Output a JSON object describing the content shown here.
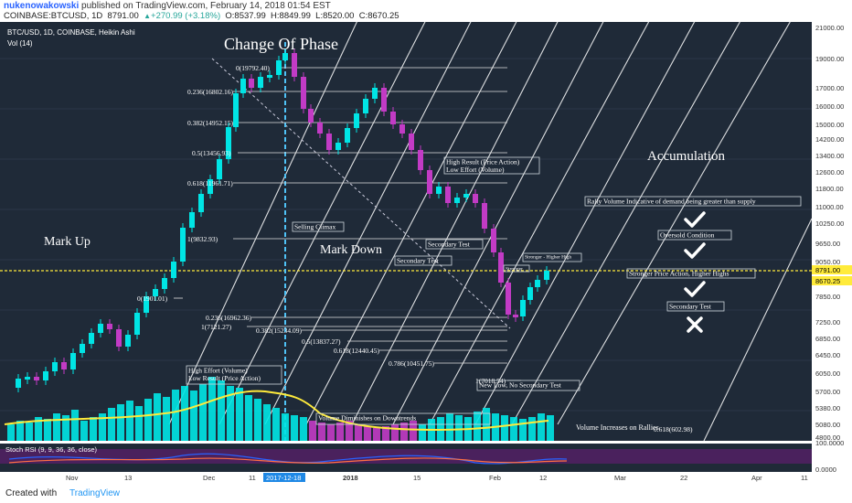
{
  "header": {
    "author": "nukenowakowski",
    "published": "published on TradingView.com, February 14, 2018 01:54 EST",
    "symbol": "COINBASE:BTCUSD, 1D",
    "last": "8791.00",
    "change": "+270.99 (+3.18%)",
    "open": "O:8537.99",
    "high": "H:8849.99",
    "low": "L:8520.00",
    "close": "C:8670.25"
  },
  "footer": {
    "created_with": "Created with",
    "brand": "TradingView"
  },
  "chart_data": {
    "type": "candlestick",
    "title": "BTC/USD, 1D, COINBASE, Heikin Ashi",
    "indicator": "Vol (14)",
    "rsi_label": "Stoch RSI (9, 9, 36, 36, close)",
    "y_ticks": [
      "21000.00",
      "19000.00",
      "17000.00",
      "16000.00",
      "15000.00",
      "14200.00",
      "13400.00",
      "12600.00",
      "11800.00",
      "11000.00",
      "10250.00",
      "9650.00",
      "9050.00",
      "7850.00",
      "7250.00",
      "6850.00",
      "6450.00",
      "6050.00",
      "5700.00",
      "5380.00",
      "5080.00",
      "4800.00"
    ],
    "rsi_ticks": [
      "100.0000",
      "0.0000"
    ],
    "price_tag_1": "8791.00",
    "price_tag_2": "8670.25",
    "x_ticks": [
      "Nov",
      "13",
      "Dec",
      "11",
      "2017-12-18",
      "2018",
      "15",
      "Feb",
      "12",
      "Mar",
      "22",
      "Apr",
      "11"
    ],
    "fib_labels": [
      "0(19792.40)",
      "0.236(16802.16)",
      "0.382(14952.15)",
      "0.5(13456.93)",
      "0.618(11961.71)",
      "1(9832.93)",
      "0(1901.01)",
      "0.236(16962.36)",
      "1(7121.27)",
      "0.382(15234.09)",
      "0.5(13837.27)",
      "0.618(12440.45)",
      "0.786(10451.75)",
      "1(7018.54)",
      "0.618(602.98)"
    ],
    "annotations": {
      "change_of_phase": "Change Of Phase",
      "mark_up": "Mark Up",
      "mark_down": "Mark Down",
      "accumulation": "Accumulation",
      "selling_climax": "Selling Climax",
      "high_result": "High Result (Price Action)",
      "low_effort": "Low Effort (Volume)",
      "secondary_test_1": "Secondary Test",
      "secondary_test_2": "Secondary Test",
      "stronger": "Stronger",
      "stronger_higher_high": "Stronger - Higher High",
      "high_effort": "High Effort (Volume)",
      "low_result": "Low Result (Price Action)",
      "new_low": "New Low, No Secondary Test",
      "volume_diminishes": "Volume  Diminishes  on  Downtrends",
      "volume_increases": "Volume  Increases  on  Rallies",
      "rally_volume": "Rally Volume Indicative of demand being greater than supply",
      "oversold": "Oversold Condition",
      "stronger_price_action": "Stronger Price Action, Higher Highs",
      "secondary_test_3": "Secondary Test"
    },
    "checklist": [
      "check",
      "check",
      "check",
      "cross"
    ],
    "colors": {
      "bull": "#00e5e5",
      "bear": "#c23bc5",
      "volume_ma": "#ffeb3b",
      "fan": "#ffffff",
      "price_line": "#ffeb3b",
      "dark_bg": "#1f2a38",
      "rsi_bg": "#5a1f6a"
    }
  }
}
